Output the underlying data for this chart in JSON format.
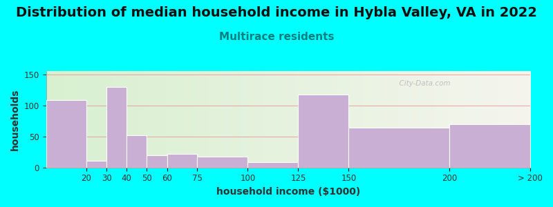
{
  "title": "Distribution of median household income in Hybla Valley, VA in 2022",
  "subtitle": "Multirace residents",
  "xlabel": "household income ($1000)",
  "ylabel": "households",
  "bar_labels": [
    "20",
    "30",
    "40",
    "50",
    "60",
    "75",
    "100",
    "125",
    "150",
    "200",
    "> 200"
  ],
  "bar_values": [
    108,
    11,
    130,
    52,
    20,
    22,
    17,
    9,
    117,
    64,
    70
  ],
  "bar_left_edges": [
    0,
    20,
    30,
    40,
    50,
    60,
    75,
    100,
    125,
    150,
    200
  ],
  "bar_right_edges": [
    20,
    30,
    40,
    50,
    60,
    75,
    100,
    125,
    150,
    200,
    240
  ],
  "tick_positions": [
    20,
    30,
    40,
    50,
    60,
    75,
    100,
    125,
    150,
    200,
    240
  ],
  "bar_color": "#c9afd4",
  "background_color": "#00ffff",
  "plot_bg_color_left": "#d8f0d0",
  "plot_bg_color_right": "#f5f5ee",
  "grid_color": "#e89898",
  "ylim": [
    0,
    155
  ],
  "yticks": [
    0,
    50,
    100,
    150
  ],
  "title_fontsize": 14,
  "subtitle_fontsize": 11,
  "subtitle_color": "#008080",
  "axis_label_fontsize": 10,
  "title_color": "#111111",
  "watermark": "  City-Data.com"
}
